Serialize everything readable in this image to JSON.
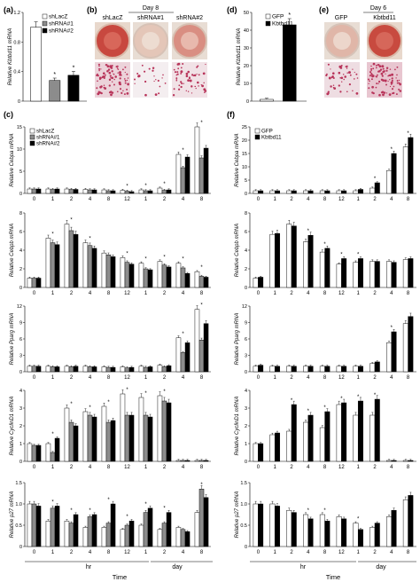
{
  "panel_letters": {
    "a": "(a)",
    "b": "(b)",
    "c": "(c)",
    "d": "(d)",
    "e": "(e)",
    "f": "(f)"
  },
  "panel_b": {
    "header": "Day 8",
    "labels": [
      "shLacZ",
      "shRNA#1",
      "shRNA#2"
    ]
  },
  "panel_e": {
    "header": "Day 6",
    "labels": [
      "GFP",
      "Kbtbd11"
    ]
  },
  "colors": {
    "white_bar": "#ffffff",
    "gray_bar": "#8c8c8c",
    "black_bar": "#000000",
    "dish_red": "#c44a4a",
    "stain_red": "#b8345a"
  },
  "chart_data": [
    {
      "id": "a",
      "type": "bar",
      "ylabel": "Relative Kbtbd11 mRNA",
      "ylim": [
        0,
        1.2
      ],
      "yticks": [
        "0",
        "0.4",
        "0.8",
        "1.2"
      ],
      "legend": "inside",
      "categories": [
        "shLacZ",
        "shRNA#1",
        "shRNA#2"
      ],
      "series": [
        {
          "name": "shLacZ",
          "values": [
            1.0,
            null,
            null
          ]
        },
        {
          "name": "shRNA#1",
          "values": [
            null,
            0.28,
            null
          ]
        },
        {
          "name": "shRNA#2",
          "values": [
            null,
            null,
            0.35
          ]
        }
      ],
      "errors": [
        0.06,
        0.02,
        0.04
      ],
      "stars": [
        false,
        true,
        true
      ]
    },
    {
      "id": "d",
      "type": "bar",
      "ylabel": "Relative Kbtbd11 mRNA",
      "ylim": [
        0,
        50
      ],
      "yticks": [
        "0",
        "10",
        "20",
        "30",
        "40",
        "50"
      ],
      "legend": "top-right",
      "categories": [
        "GFP",
        "Kbtbd11"
      ],
      "series": [
        {
          "name": "GFP",
          "values": [
            1,
            null
          ]
        },
        {
          "name": "Kbtbd11",
          "values": [
            null,
            43
          ]
        }
      ],
      "errors": [
        0.1,
        3
      ],
      "stars": [
        false,
        true
      ]
    },
    {
      "id": "c1",
      "type": "bar",
      "ylabel": "Relative Cebpa mRNA",
      "ylim": [
        0,
        15
      ],
      "yticks": [
        "0",
        "5",
        "10",
        "15"
      ],
      "legend": "top-left",
      "categories": [
        "0",
        "1",
        "2",
        "4",
        "8",
        "12",
        "1",
        "2",
        "4",
        "8"
      ],
      "series": [
        {
          "name": "shLacZ",
          "values": [
            1,
            1,
            1,
            0.9,
            0.8,
            0.7,
            0.8,
            1.2,
            8.8,
            15
          ]
        },
        {
          "name": "shRNA#1",
          "values": [
            1,
            0.9,
            0.9,
            0.8,
            0.6,
            0.5,
            0.6,
            0.7,
            5.8,
            8
          ]
        },
        {
          "name": "shRNA#2",
          "values": [
            1,
            1,
            0.9,
            0.8,
            0.6,
            0.4,
            0.6,
            0.8,
            8.2,
            10.2
          ]
        }
      ],
      "stars": [
        false,
        false,
        false,
        false,
        false,
        true,
        true,
        true,
        true,
        true
      ]
    },
    {
      "id": "c2",
      "type": "bar",
      "ylabel": "Relative Cebpb mRNA",
      "ylim": [
        0,
        8
      ],
      "yticks": [
        "0",
        "2",
        "4",
        "6",
        "8"
      ],
      "categories": [
        "0",
        "1",
        "2",
        "4",
        "8",
        "12",
        "1",
        "2",
        "4",
        "8"
      ],
      "series": [
        {
          "name": "shLacZ",
          "values": [
            1,
            5.3,
            6.8,
            4.8,
            3.7,
            3.2,
            2.6,
            2.8,
            2.6,
            1.7
          ]
        },
        {
          "name": "shRNA#1",
          "values": [
            1,
            4.8,
            6.1,
            4.5,
            3.5,
            2.7,
            2.0,
            2.4,
            2.1,
            1.2
          ]
        },
        {
          "name": "shRNA#2",
          "values": [
            1,
            4.6,
            5.7,
            4.2,
            3.3,
            2.5,
            1.9,
            2.2,
            1.5,
            1.1
          ]
        }
      ],
      "stars": [
        false,
        true,
        true,
        true,
        false,
        true,
        true,
        true,
        true,
        true
      ]
    },
    {
      "id": "c3",
      "type": "bar",
      "ylabel": "Relative Pparg mRNA",
      "ylim": [
        0,
        12
      ],
      "yticks": [
        "0",
        "3",
        "6",
        "9",
        "12"
      ],
      "categories": [
        "0",
        "1",
        "2",
        "4",
        "8",
        "12",
        "1",
        "2",
        "4",
        "8"
      ],
      "series": [
        {
          "name": "shLacZ",
          "values": [
            1,
            1,
            1,
            1,
            0.9,
            0.9,
            1,
            1.2,
            6.2,
            11.4
          ]
        },
        {
          "name": "shRNA#1",
          "values": [
            1,
            0.9,
            0.9,
            0.9,
            0.8,
            0.7,
            0.8,
            0.9,
            3.5,
            5.8
          ]
        },
        {
          "name": "shRNA#2",
          "values": [
            1,
            0.9,
            1,
            0.9,
            0.8,
            0.8,
            0.9,
            1.1,
            5.3,
            8.8
          ]
        }
      ],
      "stars": [
        false,
        false,
        false,
        false,
        false,
        false,
        false,
        false,
        true,
        true
      ]
    },
    {
      "id": "c4",
      "type": "bar",
      "ylabel": "Relative CyclinD1 mRNA",
      "ylim": [
        0,
        4
      ],
      "yticks": [
        "0",
        "1",
        "2",
        "3",
        "4"
      ],
      "categories": [
        "0",
        "1",
        "2",
        "4",
        "8",
        "12",
        "1",
        "2",
        "4",
        "8"
      ],
      "series": [
        {
          "name": "shLacZ",
          "values": [
            1,
            1,
            3,
            2.8,
            3.1,
            3.8,
            3.6,
            3.7,
            0.05,
            0.05
          ]
        },
        {
          "name": "shRNA#1",
          "values": [
            0.9,
            0.5,
            2.2,
            2.6,
            2.2,
            2.6,
            2.6,
            3.4,
            0.05,
            0.05
          ]
        },
        {
          "name": "shRNA#2",
          "values": [
            0.9,
            1.3,
            2,
            2.5,
            2.3,
            2.6,
            2.5,
            3.3,
            0.05,
            0.05
          ]
        }
      ],
      "stars": [
        false,
        true,
        true,
        true,
        true,
        true,
        true,
        true,
        false,
        false
      ]
    },
    {
      "id": "c5",
      "type": "bar",
      "ylabel": "Relative p27 mRNA",
      "ylim": [
        0,
        1.5
      ],
      "yticks": [
        "0",
        "0.5",
        "1.0",
        "1.5"
      ],
      "categories": [
        "0",
        "1",
        "2",
        "4",
        "8",
        "12",
        "1",
        "2",
        "4",
        "8"
      ],
      "series": [
        {
          "name": "shLacZ",
          "values": [
            1,
            0.6,
            0.6,
            0.45,
            0.45,
            0.4,
            0.5,
            0.4,
            0.45,
            0.8
          ]
        },
        {
          "name": "shRNA#1",
          "values": [
            1,
            0.9,
            0.55,
            0.7,
            0.55,
            0.5,
            0.8,
            0.55,
            0.4,
            1.35
          ]
        },
        {
          "name": "shRNA#2",
          "values": [
            0.95,
            0.95,
            0.75,
            0.75,
            1.0,
            0.6,
            0.9,
            0.8,
            0.35,
            1.15
          ]
        }
      ],
      "stars": [
        false,
        true,
        true,
        true,
        true,
        true,
        true,
        true,
        false,
        true
      ]
    },
    {
      "id": "f1",
      "type": "bar",
      "ylabel": "Relative Cebpa mRNA",
      "ylim": [
        0,
        25
      ],
      "yticks": [
        "0",
        "5",
        "10",
        "15",
        "20",
        "25"
      ],
      "legend": "top-left",
      "categories": [
        "0",
        "1",
        "2",
        "4",
        "8",
        "12",
        "1",
        "2",
        "4",
        "8"
      ],
      "series": [
        {
          "name": "GFP",
          "values": [
            1,
            1,
            1,
            1,
            1,
            1,
            1,
            2,
            8.6,
            17.5
          ]
        },
        {
          "name": "Kbtbd11",
          "values": [
            1,
            1,
            1,
            1,
            1,
            1,
            1.5,
            4,
            15,
            21
          ]
        }
      ],
      "stars": [
        false,
        false,
        false,
        false,
        false,
        false,
        false,
        true,
        true,
        true
      ]
    },
    {
      "id": "f2",
      "type": "bar",
      "ylabel": "Relative Cebpb mRNA",
      "ylim": [
        0,
        8
      ],
      "yticks": [
        "0",
        "2",
        "4",
        "6",
        "8"
      ],
      "categories": [
        "0",
        "1",
        "2",
        "4",
        "8",
        "12",
        "1",
        "2",
        "4",
        "8"
      ],
      "series": [
        {
          "name": "GFP",
          "values": [
            1,
            5.7,
            6.8,
            4.9,
            3.8,
            2.5,
            2.7,
            2.8,
            2.8,
            3
          ]
        },
        {
          "name": "Kbtbd11",
          "values": [
            1.1,
            5.8,
            6.6,
            5.6,
            4.2,
            3.1,
            3.1,
            2.8,
            2.7,
            3.1
          ]
        }
      ],
      "stars": [
        false,
        false,
        false,
        true,
        true,
        true,
        true,
        false,
        false,
        false
      ]
    },
    {
      "id": "f3",
      "type": "bar",
      "ylabel": "Relative Pparg mRNA",
      "ylim": [
        0,
        12
      ],
      "yticks": [
        "0",
        "3",
        "6",
        "9",
        "12"
      ],
      "categories": [
        "0",
        "1",
        "2",
        "4",
        "8",
        "12",
        "1",
        "2",
        "4",
        "8"
      ],
      "series": [
        {
          "name": "GFP",
          "values": [
            1,
            1,
            1,
            1,
            1,
            1,
            1,
            1.5,
            5.3,
            8.8
          ]
        },
        {
          "name": "Kbtbd11",
          "values": [
            1.2,
            1,
            1,
            1,
            1,
            1,
            1,
            1.8,
            7.3,
            10.1
          ]
        }
      ],
      "stars": [
        false,
        false,
        false,
        false,
        false,
        false,
        false,
        false,
        true,
        false
      ]
    },
    {
      "id": "f4",
      "type": "bar",
      "ylabel": "Relative CyclinD1 mRNA",
      "ylim": [
        0,
        4
      ],
      "yticks": [
        "0",
        "1",
        "2",
        "3",
        "4"
      ],
      "categories": [
        "0",
        "1",
        "2",
        "4",
        "8",
        "12",
        "1",
        "2",
        "4",
        "8"
      ],
      "series": [
        {
          "name": "GFP",
          "values": [
            1,
            1.5,
            1.7,
            2.2,
            1.9,
            3.2,
            2.6,
            2.6,
            0.05,
            0.05
          ]
        },
        {
          "name": "Kbtbd11",
          "values": [
            1,
            1.6,
            3.2,
            2.6,
            2.8,
            3.3,
            3.4,
            3.5,
            0.05,
            0.05
          ]
        }
      ],
      "stars": [
        false,
        false,
        true,
        true,
        true,
        true,
        true,
        true,
        false,
        false
      ]
    },
    {
      "id": "f5",
      "type": "bar",
      "ylabel": "Relative p27 mRNA",
      "ylim": [
        0,
        1.5
      ],
      "yticks": [
        "0",
        "0.5",
        "1.0",
        "1.5"
      ],
      "categories": [
        "0",
        "1",
        "2",
        "4",
        "8",
        "12",
        "1",
        "2",
        "4",
        "8"
      ],
      "series": [
        {
          "name": "GFP",
          "values": [
            1,
            1,
            0.85,
            0.75,
            0.75,
            0.7,
            0.55,
            0.45,
            0.7,
            1.1
          ]
        },
        {
          "name": "Kbtbd11",
          "values": [
            1,
            0.95,
            0.8,
            0.65,
            0.6,
            0.65,
            0.4,
            0.55,
            0.85,
            1.2
          ]
        }
      ],
      "stars": [
        false,
        false,
        false,
        true,
        true,
        false,
        true,
        false,
        false,
        false
      ]
    }
  ],
  "xaxis_groups": {
    "hr": "hr",
    "day": "day",
    "time": "Time"
  }
}
